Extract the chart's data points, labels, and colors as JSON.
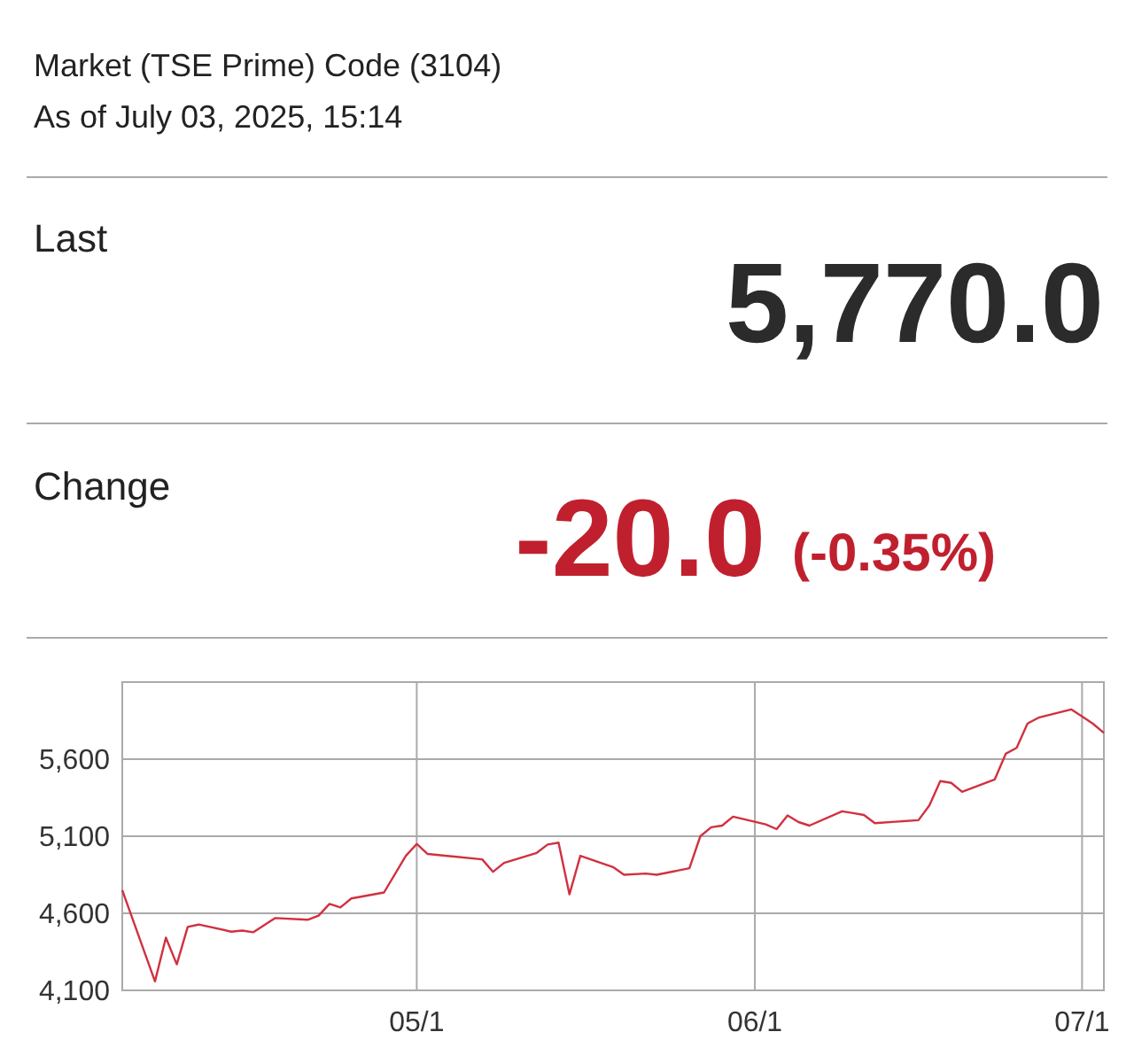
{
  "chart_data": {
    "type": "line",
    "title": "Market (TSE Prime) Code (3104)",
    "subtitle": "As of July 03, 2025, 15:14",
    "annotations": [
      "Last",
      "5,770.0",
      "Change",
      "-20.0",
      "(-0.35%)"
    ],
    "x": [
      "2025-04-04",
      "2025-04-07",
      "2025-04-08",
      "2025-04-09",
      "2025-04-10",
      "2025-04-11",
      "2025-04-14",
      "2025-04-15",
      "2025-04-16",
      "2025-04-18",
      "2025-04-21",
      "2025-04-22",
      "2025-04-23",
      "2025-04-24",
      "2025-04-25",
      "2025-04-28",
      "2025-04-30",
      "2025-05-01",
      "2025-05-02",
      "2025-05-07",
      "2025-05-08",
      "2025-05-09",
      "2025-05-12",
      "2025-05-13",
      "2025-05-14",
      "2025-05-15",
      "2025-05-16",
      "2025-05-19",
      "2025-05-20",
      "2025-05-22",
      "2025-05-23",
      "2025-05-26",
      "2025-05-27",
      "2025-05-28",
      "2025-05-29",
      "2025-05-30",
      "2025-06-02",
      "2025-06-03",
      "2025-06-04",
      "2025-06-05",
      "2025-06-06",
      "2025-06-09",
      "2025-06-10",
      "2025-06-11",
      "2025-06-12",
      "2025-06-16",
      "2025-06-17",
      "2025-06-18",
      "2025-06-19",
      "2025-06-20",
      "2025-06-23",
      "2025-06-24",
      "2025-06-25",
      "2025-06-26",
      "2025-06-27",
      "2025-06-30",
      "2025-07-01",
      "2025-07-02",
      "2025-07-03"
    ],
    "series": [
      {
        "color": "#d0313f",
        "values": [
          4750,
          4158,
          4442,
          4269,
          4512,
          4527,
          4481,
          4488,
          4477,
          4569,
          4558,
          4585,
          4661,
          4638,
          4696,
          4735,
          4973,
          5050,
          4985,
          4950,
          4869,
          4927,
          4992,
          5046,
          5058,
          4723,
          4973,
          4900,
          4850,
          4858,
          4850,
          4892,
          5100,
          5158,
          5169,
          5227,
          5177,
          5146,
          5235,
          5192,
          5169,
          5262,
          5250,
          5238,
          5185,
          5204,
          5300,
          5458,
          5446,
          5388,
          5469,
          5635,
          5673,
          5831,
          5869,
          5923,
          5877,
          5830,
          5770
        ]
      }
    ],
    "xlim": [
      "2025-04-04",
      "2025-07-03"
    ],
    "xticks": [
      {
        "value": "2025-05-01",
        "label": "05/1"
      },
      {
        "value": "2025-06-01",
        "label": "06/1"
      },
      {
        "value": "2025-07-01",
        "label": "07/1"
      }
    ],
    "ylim": [
      4100,
      6100
    ],
    "yticks": [
      {
        "value": 4100,
        "label": "4,100"
      },
      {
        "value": 4600,
        "label": "4,600"
      },
      {
        "value": 5100,
        "label": "5,100"
      },
      {
        "value": 5600,
        "label": "5,600"
      }
    ],
    "grid": true,
    "marker": "none",
    "line_style": "solid"
  }
}
